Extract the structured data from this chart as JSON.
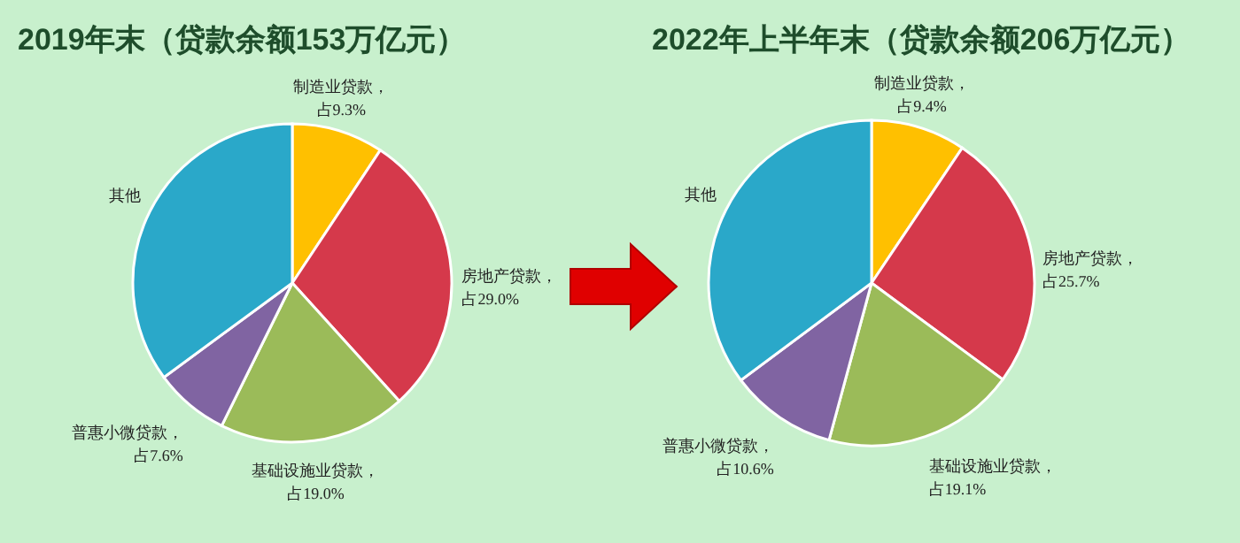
{
  "chart_data": [
    {
      "type": "pie",
      "title": "2019年末（贷款余额153万亿元）",
      "categories": [
        "制造业贷款",
        "房地产贷款",
        "基础设施业贷款",
        "普惠小微贷款",
        "其他"
      ],
      "values": [
        9.3,
        29.0,
        19.0,
        7.6,
        35.1
      ],
      "colors": [
        "#ffc000",
        "#d5394b",
        "#9bbb59",
        "#8064a2",
        "#2aa8c9"
      ],
      "value_labels": [
        "，占9.3%",
        "，占29.0%",
        "，占19.0%",
        "，占7.6%",
        null
      ]
    },
    {
      "type": "pie",
      "title": "2022年上半年末（贷款余额206万亿元）",
      "categories": [
        "制造业贷款",
        "房地产贷款",
        "基础设施业贷款",
        "普惠小微贷款",
        "其他"
      ],
      "values": [
        9.4,
        25.7,
        19.1,
        10.6,
        35.2
      ],
      "colors": [
        "#ffc000",
        "#d5394b",
        "#9bbb59",
        "#8064a2",
        "#2aa8c9"
      ],
      "value_labels": [
        "，占9.4%",
        "，占25.7%",
        "，占19.1%",
        "，占10.6%",
        null
      ]
    }
  ]
}
